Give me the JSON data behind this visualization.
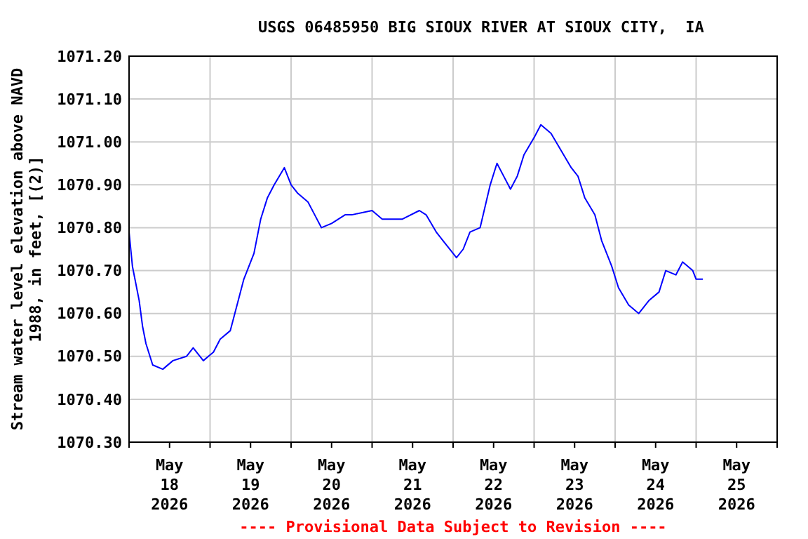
{
  "chart_data": {
    "type": "line",
    "title": "USGS 06485950 BIG SIOUX RIVER AT SIOUX CITY,  IA",
    "ylabel": "Stream water level elevation above NAVD 1988, in feet, [(2)]",
    "annotations": [
      "---- Provisional Data Subject to Revision ----"
    ],
    "x": [
      "2026-05-18T00:00",
      "2026-05-18T01:00",
      "2026-05-18T03:00",
      "2026-05-18T04:00",
      "2026-05-18T05:00",
      "2026-05-18T07:00",
      "2026-05-18T10:00",
      "2026-05-18T13:00",
      "2026-05-18T17:00",
      "2026-05-18T19:00",
      "2026-05-18T22:00",
      "2026-05-19T01:00",
      "2026-05-19T03:00",
      "2026-05-19T06:00",
      "2026-05-19T08:00",
      "2026-05-19T10:00",
      "2026-05-19T13:00",
      "2026-05-19T15:00",
      "2026-05-19T17:00",
      "2026-05-19T19:00",
      "2026-05-19T22:00",
      "2026-05-20T00:00",
      "2026-05-20T02:00",
      "2026-05-20T05:00",
      "2026-05-20T07:00",
      "2026-05-20T09:00",
      "2026-05-20T12:00",
      "2026-05-20T16:00",
      "2026-05-20T18:00",
      "2026-05-21T00:00",
      "2026-05-21T03:00",
      "2026-05-21T09:00",
      "2026-05-21T14:00",
      "2026-05-21T16:00",
      "2026-05-21T19:00",
      "2026-05-21T21:00",
      "2026-05-22T01:00",
      "2026-05-22T03:00",
      "2026-05-22T05:00",
      "2026-05-22T08:00",
      "2026-05-22T11:00",
      "2026-05-22T13:00",
      "2026-05-22T15:00",
      "2026-05-22T17:00",
      "2026-05-22T19:00",
      "2026-05-22T21:00",
      "2026-05-23T00:00",
      "2026-05-23T02:00",
      "2026-05-23T05:00",
      "2026-05-23T08:00",
      "2026-05-23T11:00",
      "2026-05-23T13:00",
      "2026-05-23T15:00",
      "2026-05-23T18:00",
      "2026-05-23T20:00",
      "2026-05-23T23:00",
      "2026-05-24T01:00",
      "2026-05-24T04:00",
      "2026-05-24T07:00",
      "2026-05-24T10:00",
      "2026-05-24T13:00",
      "2026-05-24T15:00",
      "2026-05-24T18:00",
      "2026-05-24T20:00",
      "2026-05-24T23:00",
      "2026-05-25T00:00",
      "2026-05-25T02:00"
    ],
    "series": [
      {
        "color": "#0000ff",
        "values": [
          1070.79,
          1070.71,
          1070.63,
          1070.57,
          1070.53,
          1070.48,
          1070.47,
          1070.49,
          1070.5,
          1070.52,
          1070.49,
          1070.51,
          1070.54,
          1070.56,
          1070.62,
          1070.68,
          1070.74,
          1070.82,
          1070.87,
          1070.9,
          1070.94,
          1070.9,
          1070.88,
          1070.86,
          1070.83,
          1070.8,
          1070.81,
          1070.83,
          1070.83,
          1070.84,
          1070.82,
          1070.82,
          1070.84,
          1070.83,
          1070.79,
          1070.77,
          1070.73,
          1070.75,
          1070.79,
          1070.8,
          1070.9,
          1070.95,
          1070.92,
          1070.89,
          1070.92,
          1070.97,
          1071.01,
          1071.04,
          1071.02,
          1070.98,
          1070.94,
          1070.92,
          1070.87,
          1070.83,
          1070.77,
          1070.71,
          1070.66,
          1070.62,
          1070.6,
          1070.63,
          1070.65,
          1070.7,
          1070.69,
          1070.72,
          1070.7,
          1070.68,
          1070.68
        ]
      }
    ],
    "xlim": [
      "2026-05-18T00:00",
      "2026-05-26T00:00"
    ],
    "xticks": [
      {
        "value": "2026-05-18T00:00",
        "label": null
      },
      {
        "value": "2026-05-18T12:00",
        "label": "May 18 2026"
      },
      {
        "value": "2026-05-19T00:00",
        "label": null
      },
      {
        "value": "2026-05-19T12:00",
        "label": "May 19 2026"
      },
      {
        "value": "2026-05-20T00:00",
        "label": null
      },
      {
        "value": "2026-05-20T12:00",
        "label": "May 20 2026"
      },
      {
        "value": "2026-05-21T00:00",
        "label": null
      },
      {
        "value": "2026-05-21T12:00",
        "label": "May 21 2026"
      },
      {
        "value": "2026-05-22T00:00",
        "label": null
      },
      {
        "value": "2026-05-22T12:00",
        "label": "May 22 2026"
      },
      {
        "value": "2026-05-23T00:00",
        "label": null
      },
      {
        "value": "2026-05-23T12:00",
        "label": "May 23 2026"
      },
      {
        "value": "2026-05-24T00:00",
        "label": null
      },
      {
        "value": "2026-05-24T12:00",
        "label": "May 24 2026"
      },
      {
        "value": "2026-05-25T00:00",
        "label": null
      },
      {
        "value": "2026-05-25T12:00",
        "label": "May 25 2026"
      },
      {
        "value": "2026-05-26T00:00",
        "label": null
      }
    ],
    "ylim": [
      1070.3,
      1071.2
    ],
    "yticks": [
      {
        "value": 1070.3,
        "label": "1070.30"
      },
      {
        "value": 1070.4,
        "label": "1070.40"
      },
      {
        "value": 1070.5,
        "label": "1070.50"
      },
      {
        "value": 1070.6,
        "label": "1070.60"
      },
      {
        "value": 1070.7,
        "label": "1070.70"
      },
      {
        "value": 1070.8,
        "label": "1070.80"
      },
      {
        "value": 1070.9,
        "label": "1070.90"
      },
      {
        "value": 1071,
        "label": "1071.00"
      },
      {
        "value": 1071.1,
        "label": "1071.10"
      },
      {
        "value": 1071.2,
        "label": "1071.20"
      }
    ],
    "grid": true,
    "marker": "none",
    "line_style": "solid"
  }
}
